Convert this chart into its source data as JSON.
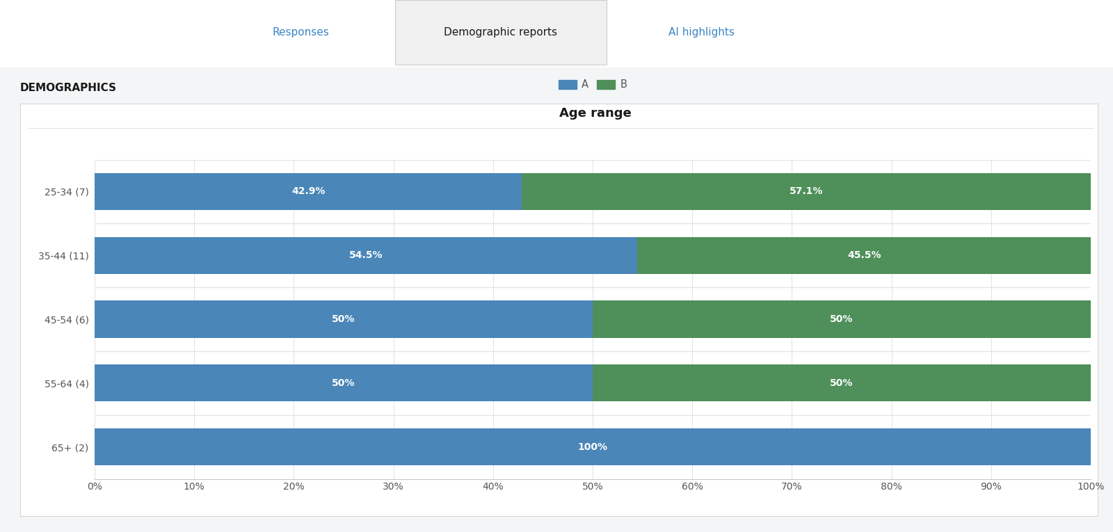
{
  "title": "Age range",
  "categories": [
    "25-34 (7)",
    "35-44 (11)",
    "45-54 (6)",
    "55-64 (4)",
    "65+ (2)"
  ],
  "series_A": [
    42.9,
    54.5,
    50.0,
    50.0,
    100.0
  ],
  "series_B": [
    57.1,
    45.5,
    50.0,
    50.0,
    0.0
  ],
  "labels_A": [
    "42.9%",
    "54.5%",
    "50%",
    "50%",
    "100%"
  ],
  "labels_B": [
    "57.1%",
    "45.5%",
    "50%",
    "50%",
    ""
  ],
  "color_A": "#4a86b8",
  "color_B": "#4f8f5a",
  "legend_A": "A",
  "legend_B": "B",
  "bg_outer": "#f4f5f7",
  "bg_white": "#ffffff",
  "bg_tab": "#f0f0f0",
  "demographics_label": "DEMOGRAPHICS",
  "nav_responses": "Responses",
  "nav_demo": "Demographic reports",
  "nav_ai": "AI highlights",
  "title_fontsize": 13,
  "label_fontsize": 10,
  "tick_fontsize": 10,
  "cat_fontsize": 10,
  "bar_height": 0.58,
  "nav_color": "#3a85c5",
  "text_dark": "#1a1a1a",
  "text_mid": "#555555",
  "grid_color": "#e2e2e2",
  "sep_color": "#e4e4e4"
}
